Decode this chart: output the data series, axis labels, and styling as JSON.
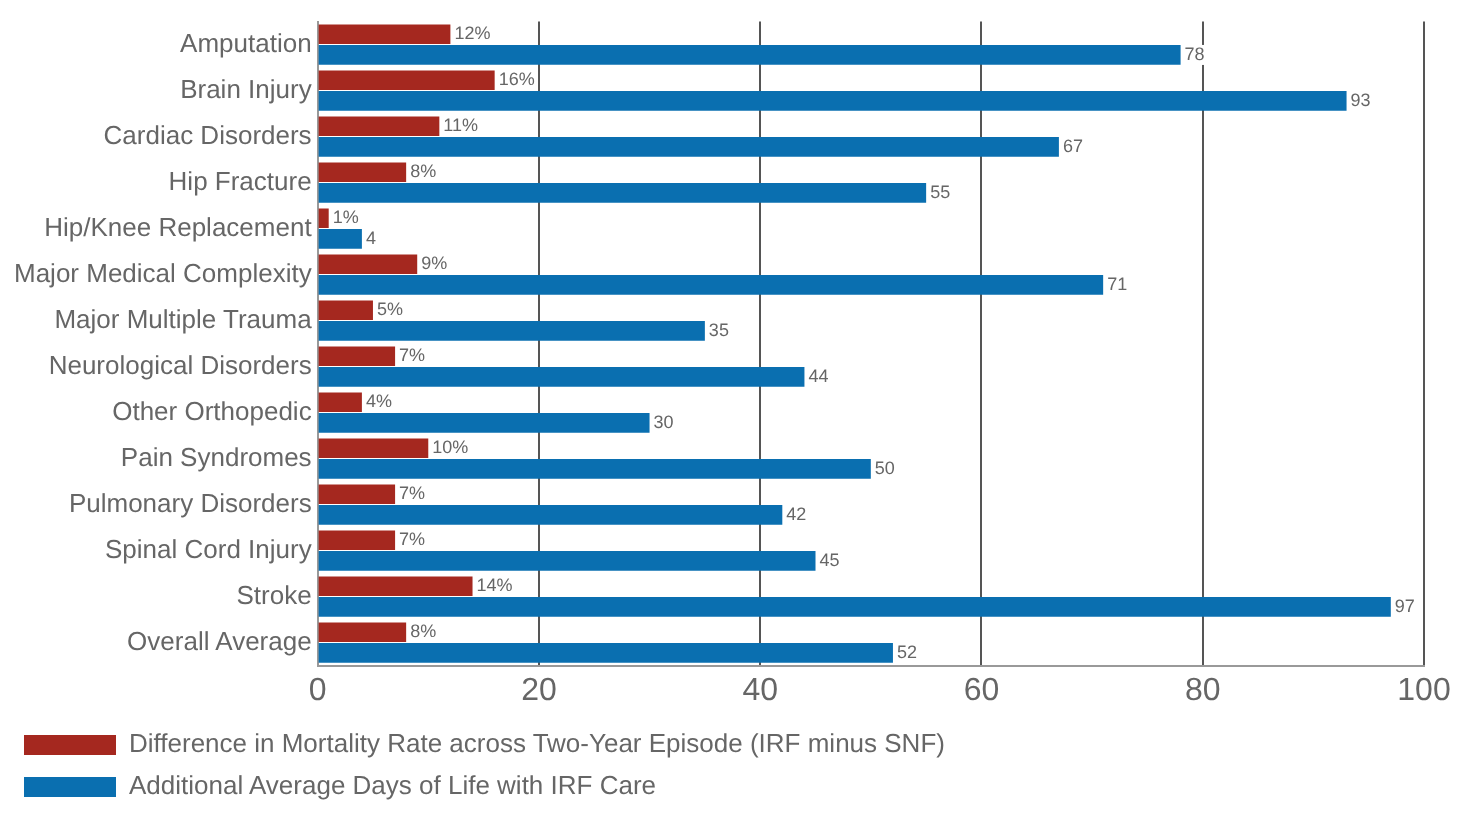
{
  "chart_data": {
    "type": "bar",
    "orientation": "horizontal",
    "categories": [
      "Amputation",
      "Brain Injury",
      "Cardiac Disorders",
      "Hip Fracture",
      "Hip/Knee Replacement",
      "Major Medical Complexity",
      "Major Multiple Trauma",
      "Neurological Disorders",
      "Other Orthopedic",
      "Pain Syndromes",
      "Pulmonary Disorders",
      "Spinal Cord Injury",
      "Stroke",
      "Overall Average"
    ],
    "series": [
      {
        "name": "Difference in Mortality Rate across Two-Year Episode (IRF minus SNF)",
        "color": "#a5281f",
        "values": [
          12,
          16,
          11,
          8,
          1,
          9,
          5,
          7,
          4,
          10,
          7,
          7,
          14,
          8
        ],
        "value_labels": [
          "12%",
          "16%",
          "11%",
          "8%",
          "1%",
          "9%",
          "5%",
          "7%",
          "4%",
          "10%",
          "7%",
          "7%",
          "14%",
          "8%"
        ]
      },
      {
        "name": "Additional Average Days of Life with IRF Care",
        "color": "#0a6fb0",
        "values": [
          78,
          93,
          67,
          55,
          4,
          71,
          35,
          44,
          30,
          50,
          42,
          45,
          97,
          52
        ],
        "value_labels": [
          "78",
          "93",
          "67",
          "55",
          "4",
          "71",
          "35",
          "44",
          "30",
          "50",
          "42",
          "45",
          "97",
          "52"
        ]
      }
    ],
    "xlim": [
      0,
      100
    ],
    "xticks": [
      0,
      20,
      40,
      60,
      80,
      100
    ],
    "grid": "x",
    "legend": "bottom"
  }
}
